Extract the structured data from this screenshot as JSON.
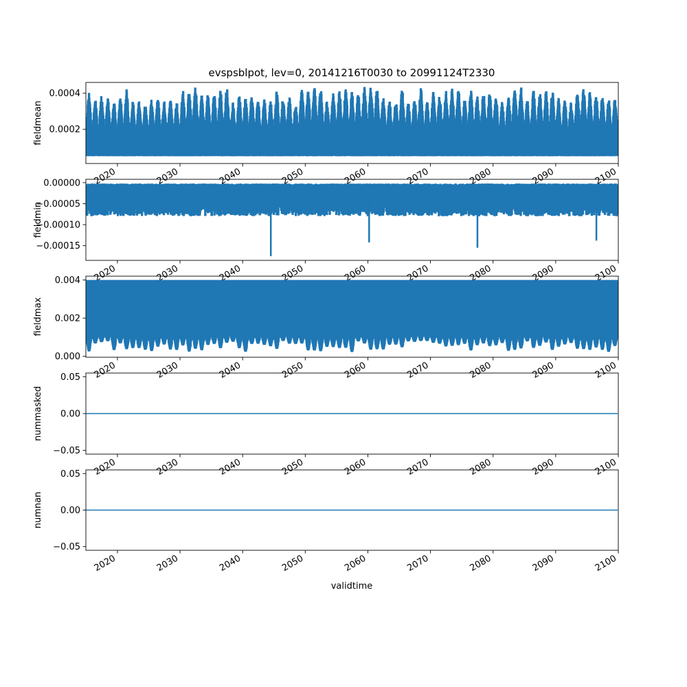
{
  "figure": {
    "title": "evspsblpot, lev=0, 20141216T0030 to 20991124T2330",
    "xlabel": "validtime",
    "line_color": "#1f77b4"
  },
  "chart_data": [
    {
      "type": "line",
      "ylabel": "fieldmean",
      "xlim": [
        2014.96,
        2100.0
      ],
      "ylim": [
        1e-05,
        0.00046
      ],
      "x_ticks": [
        "2020",
        "2030",
        "2040",
        "2050",
        "2060",
        "2070",
        "2080",
        "2090",
        "2100"
      ],
      "y_ticks": [
        {
          "value": 0.0002,
          "label": "0.0002"
        },
        {
          "value": 0.0004,
          "label": "0.0004"
        }
      ],
      "series": [
        {
          "x_range": [
            2014.96,
            2099.9
          ],
          "envelope": {
            "low": 5e-05,
            "high_min": 0.00035,
            "high_max": 0.00044
          },
          "seasonal": true
        }
      ]
    },
    {
      "type": "line",
      "ylabel": "fieldmin",
      "xlim": [
        2014.96,
        2100.0
      ],
      "ylim": [
        -0.000185,
        8e-06
      ],
      "x_ticks": [
        "2020",
        "2030",
        "2040",
        "2050",
        "2060",
        "2070",
        "2080",
        "2090",
        "2100"
      ],
      "y_ticks": [
        {
          "value": 0.0,
          "label": "0.00000"
        },
        {
          "value": -5e-05,
          "label": "−0.00005"
        },
        {
          "value": -0.0001,
          "label": "−0.00010"
        },
        {
          "value": -0.00015,
          "label": "−0.00015"
        }
      ],
      "series": [
        {
          "x_range": [
            2014.96,
            2099.9
          ],
          "envelope": {
            "high": -2e-06,
            "low_typical": -8e-05,
            "low_extreme": -0.000175
          },
          "spikes": [
            {
              "x": 2044.5,
              "y": -0.000175
            },
            {
              "x": 2060.2,
              "y": -0.000142
            },
            {
              "x": 2077.5,
              "y": -0.000155
            },
            {
              "x": 2096.5,
              "y": -0.000138
            }
          ],
          "seasonal": true
        }
      ]
    },
    {
      "type": "line",
      "ylabel": "fieldmax",
      "xlim": [
        2014.96,
        2100.0
      ],
      "ylim": [
        -5e-05,
        0.0042
      ],
      "x_ticks": [
        "2020",
        "2030",
        "2040",
        "2050",
        "2060",
        "2070",
        "2080",
        "2090",
        "2100"
      ],
      "y_ticks": [
        {
          "value": 0.0,
          "label": "0.000"
        },
        {
          "value": 0.002,
          "label": "0.002"
        },
        {
          "value": 0.004,
          "label": "0.004"
        }
      ],
      "series": [
        {
          "x_range": [
            2014.96,
            2099.9
          ],
          "envelope": {
            "high": 0.004,
            "low_min": 0.0002,
            "low_max": 0.0012
          },
          "seasonal": true
        }
      ]
    },
    {
      "type": "line",
      "ylabel": "nummasked",
      "xlim": [
        2014.96,
        2100.0
      ],
      "ylim": [
        -0.055,
        0.055
      ],
      "x_ticks": [
        "2020",
        "2030",
        "2040",
        "2050",
        "2060",
        "2070",
        "2080",
        "2090",
        "2100"
      ],
      "y_ticks": [
        {
          "value": 0.05,
          "label": "0.05"
        },
        {
          "value": 0.0,
          "label": "0.00"
        },
        {
          "value": -0.05,
          "label": "−0.05"
        }
      ],
      "series": [
        {
          "x": [
            2014.96,
            2099.9
          ],
          "y": [
            0,
            0
          ]
        }
      ]
    },
    {
      "type": "line",
      "ylabel": "numnan",
      "xlim": [
        2014.96,
        2100.0
      ],
      "ylim": [
        -0.055,
        0.055
      ],
      "x_ticks": [
        "2020",
        "2030",
        "2040",
        "2050",
        "2060",
        "2070",
        "2080",
        "2090",
        "2100"
      ],
      "y_ticks": [
        {
          "value": 0.05,
          "label": "0.05"
        },
        {
          "value": 0.0,
          "label": "0.00"
        },
        {
          "value": -0.05,
          "label": "−0.05"
        }
      ],
      "series": [
        {
          "x": [
            2014.96,
            2099.9
          ],
          "y": [
            0,
            0
          ]
        }
      ]
    }
  ]
}
